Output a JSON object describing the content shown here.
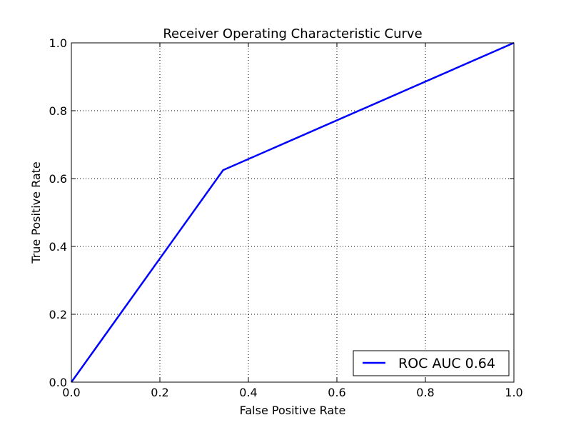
{
  "chart_data": {
    "type": "line",
    "title": "Receiver Operating Characteristic Curve",
    "xlabel": "False Positive Rate",
    "ylabel": "True Positive Rate",
    "xlim": [
      0.0,
      1.0
    ],
    "ylim": [
      0.0,
      1.0
    ],
    "xticks": [
      "0.0",
      "0.2",
      "0.4",
      "0.6",
      "0.8",
      "1.0"
    ],
    "yticks": [
      "0.0",
      "0.2",
      "0.4",
      "0.6",
      "0.8",
      "1.0"
    ],
    "grid": true,
    "legend_position": "lower-right",
    "series": [
      {
        "name": "ROC AUC 0.64",
        "color": "#0000ff",
        "x": [
          0.0,
          0.343,
          1.0
        ],
        "y": [
          0.0,
          0.625,
          1.0
        ]
      }
    ]
  }
}
